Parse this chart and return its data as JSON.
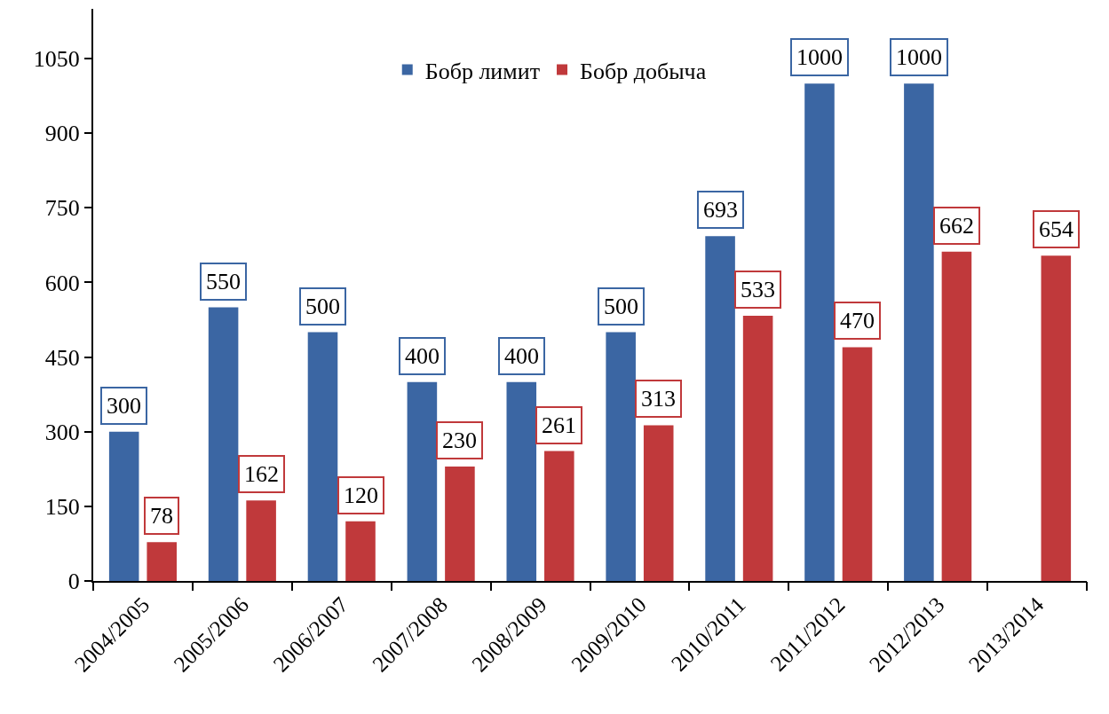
{
  "chart_data": {
    "type": "bar",
    "categories": [
      "2004/2005",
      "2005/2006",
      "2006/2007",
      "2007/2008",
      "2008/2009",
      "2009/2010",
      "2010/2011",
      "2011/2012",
      "2012/2013",
      "2013/2014"
    ],
    "series": [
      {
        "name": "Бобр лимит",
        "color": "#3b66a3",
        "values": [
          300,
          550,
          500,
          400,
          400,
          500,
          693,
          1000,
          1000,
          null
        ]
      },
      {
        "name": "Бобр добыча",
        "color": "#c0393b",
        "values": [
          78,
          162,
          120,
          230,
          261,
          313,
          533,
          470,
          662,
          654
        ]
      }
    ],
    "ylim": [
      0,
      1150
    ],
    "yticks": [
      0,
      150,
      300,
      450,
      600,
      750,
      900,
      1050
    ],
    "data_labels": true,
    "legend": "top"
  }
}
